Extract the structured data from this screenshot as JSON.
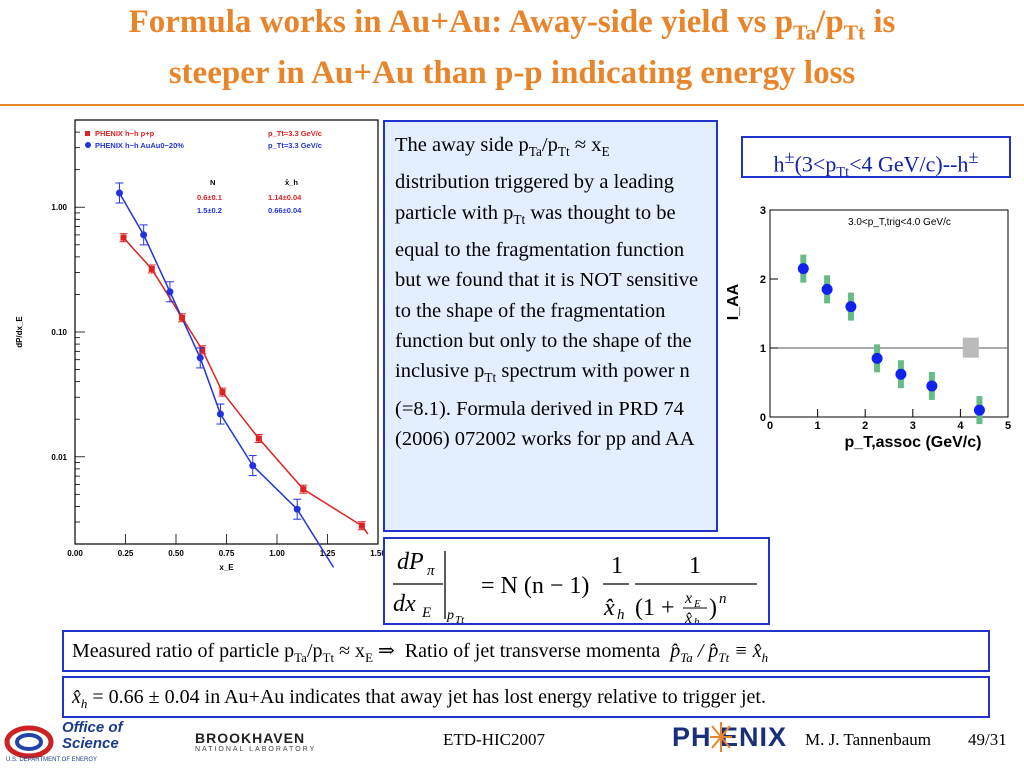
{
  "title": {
    "line1_a": "Formula works in Au+Au:  Away-side yield  vs p",
    "line1_sub1": "Ta",
    "line1_b": "/p",
    "line1_sub2": "Tt",
    "line1_c": " is",
    "line2": "steeper in Au+Au than p-p indicating energy loss"
  },
  "description": {
    "p1": "The away side p",
    "s1": "Ta",
    "p2": "/p",
    "s2": "Tt",
    "p3": " ≈ x",
    "s3": "E",
    "p4": " distribution triggered by a leading particle with p",
    "s4": "Tt",
    "p5": " was thought to be equal to the fragmentation function but we found that it is NOT sensitive to the shape of the fragmentation function but only to the shape of the inclusive p",
    "s5": "Tt",
    "p6": " spectrum  with power n (=8.1). Formula derived in PRD 74 (2006) 072002 works for pp and AA"
  },
  "hbox": {
    "a": "h",
    "sup1": "±",
    "b": "(3<p",
    "sub": "Tt",
    "c": "<4 GeV/c)--h",
    "sup2": "±"
  },
  "bar1": {
    "a": "Measured ratio of particle p",
    "s1": "Ta",
    "b": "/p",
    "s2": "Tt",
    "c": " ≈ x",
    "s3": "E",
    "d": " ⇒  Ratio of jet transverse momenta  ",
    "e": "p̂",
    "s4": "Ta",
    "f": " / ",
    "g": "p̂",
    "s5": "Tt",
    "h": " ≡ ",
    "i": "x̂",
    "s6": "h"
  },
  "bar2": {
    "a": "x̂",
    "s1": "h",
    "b": " = 0.66 ± 0.04",
    "c": " in Au+Au indicates that away jet has lost energy relative to trigger jet."
  },
  "footer": {
    "office_of": "Office of",
    "science": "Science",
    "doe": "U.S. DEPARTMENT OF ENERGY",
    "bnl": "BROOKHAVEN",
    "bnl_sub": "NATIONAL LABORATORY",
    "conference": "ETD-HIC2007",
    "phenix": "PH ENIX",
    "author": "M. J. Tannenbaum",
    "page": "49/31"
  },
  "colors": {
    "title": "#e8842a",
    "box_border": "#2233cc",
    "box_fill": "#e3eeff",
    "pp": "#dd2222",
    "auau": "#2233dd"
  },
  "chart_data": [
    {
      "type": "scatter",
      "title": "",
      "xlabel": "x_E",
      "ylabel": "dP/dx_E",
      "xlim": [
        0,
        1.5
      ],
      "ylim": [
        0.002,
        5
      ],
      "log_y": true,
      "x_ticks": [
        "0.00",
        "0.25",
        "0.50",
        "0.75",
        "1.00",
        "1.25",
        "1.50"
      ],
      "y_ticks": [
        "0.01",
        "0.10",
        "1.00"
      ],
      "legend": [
        {
          "label": "PHENIX  h−h  p+p",
          "extra": "p_Tt=3.3 GeV/c",
          "color": "#dd2222"
        },
        {
          "label": "PHENIX  h−h  AuAu0−20%",
          "extra": "p_Tt=3.3 GeV/c",
          "color": "#2233dd"
        }
      ],
      "fit_table": {
        "headers": [
          "N",
          "x̂_h"
        ],
        "rows": [
          [
            "0.6±0.1",
            "1.14±0.04"
          ],
          [
            "1.5±0.2",
            "0.66±0.04"
          ]
        ]
      },
      "series": [
        {
          "name": "PHENIX  h−h  p+p",
          "x": [
            0.24,
            0.38,
            0.53,
            0.63,
            0.73,
            0.91,
            1.13,
            1.42
          ],
          "y": [
            0.57,
            0.32,
            0.13,
            0.072,
            0.033,
            0.014,
            0.0055,
            0.0028
          ]
        },
        {
          "name": "PHENIX  h−h  AuAu0−20%",
          "x": [
            0.22,
            0.34,
            0.47,
            0.62,
            0.72,
            0.88,
            1.1
          ],
          "y": [
            1.3,
            0.6,
            0.21,
            0.062,
            0.022,
            0.0085,
            0.0038
          ]
        }
      ]
    },
    {
      "type": "scatter",
      "title": "3.0<p_T,trig<4.0 GeV/c",
      "xlabel": "p_T,assoc (GeV/c)",
      "ylabel": "I_AA",
      "xlim": [
        0,
        5
      ],
      "ylim": [
        0,
        3
      ],
      "x_ticks": [
        "0",
        "1",
        "2",
        "3",
        "4",
        "5"
      ],
      "y_ticks": [
        "0",
        "1",
        "2",
        "3"
      ],
      "reference_line": 1,
      "series": [
        {
          "x": [
            0.7,
            1.2,
            1.7,
            2.25,
            2.75,
            3.4,
            4.4
          ],
          "y": [
            2.15,
            1.85,
            1.6,
            0.85,
            0.62,
            0.45,
            0.1
          ]
        }
      ]
    }
  ]
}
